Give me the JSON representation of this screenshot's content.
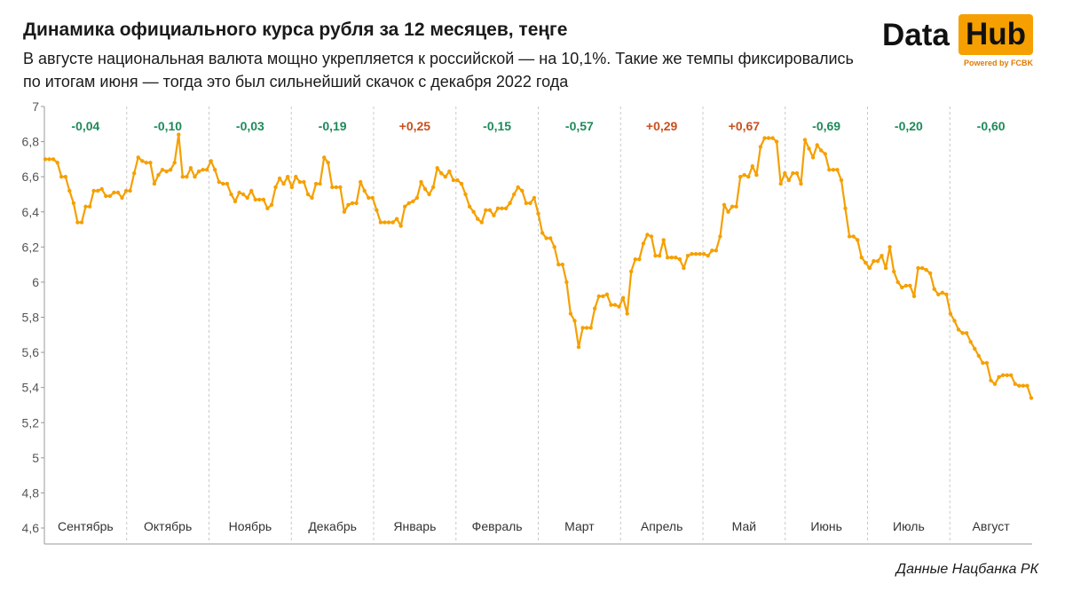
{
  "header": {
    "title": "Динамика официального курса рубля за 12 месяцев, теңге",
    "subtitle": "В августе национальная валюта мощно укрепляется к российской — на 10,1%. Такие же темпы фиксировались по итогам июня — тогда это был сильнейший скачок с декабря 2022 года"
  },
  "logo": {
    "data_text": "Data",
    "hub_text": "Hub",
    "powered": "Powered by FCBK",
    "accent_color": "#f5a000"
  },
  "source": "Данные Нацбанка РК",
  "colors": {
    "line": "#f5a000",
    "positive": "#c8501e",
    "negative": "#1e8a5a"
  },
  "chart_data": {
    "type": "line",
    "y_ticks": [
      "4,6",
      "4,8",
      "5",
      "5,2",
      "5,4",
      "5,6",
      "5,8",
      "6",
      "6,2",
      "6,4",
      "6,6",
      "6,8",
      "7"
    ],
    "ylim": [
      4.6,
      7.0
    ],
    "grid": false,
    "months": [
      "Сентябрь",
      "Октябрь",
      "Ноябрь",
      "Декабрь",
      "Январь",
      "Февраль",
      "Март",
      "Апрель",
      "Май",
      "Июнь",
      "Июль",
      "Август"
    ],
    "month_changes": [
      "-0,04",
      "-0,10",
      "-0,03",
      "-0,19",
      "+0,25",
      "-0,15",
      "-0,57",
      "+0,29",
      "+0,67",
      "-0,69",
      "-0,20",
      "-0,60"
    ],
    "series": [
      {
        "values": [
          6.7,
          6.7,
          6.7,
          6.68,
          6.6,
          6.6,
          6.52,
          6.45,
          6.34,
          6.34,
          6.43,
          6.43,
          6.52,
          6.52,
          6.53,
          6.49,
          6.49,
          6.51,
          6.51,
          6.48,
          6.52,
          6.52,
          6.62,
          6.71,
          6.69,
          6.68,
          6.68,
          6.56,
          6.61,
          6.64,
          6.63,
          6.64,
          6.68,
          6.84,
          6.6,
          6.6,
          6.65,
          6.6,
          6.63,
          6.64,
          6.64,
          6.69,
          6.64,
          6.57,
          6.56,
          6.56,
          6.5,
          6.46,
          6.51,
          6.5,
          6.48,
          6.52,
          6.47,
          6.47,
          6.47,
          6.42,
          6.44,
          6.54,
          6.59,
          6.56,
          6.6,
          6.54,
          6.6,
          6.57,
          6.57,
          6.5,
          6.48,
          6.56,
          6.56,
          6.71,
          6.68,
          6.54,
          6.54,
          6.54,
          6.4,
          6.44,
          6.45,
          6.45,
          6.57,
          6.52,
          6.48,
          6.48,
          6.41,
          6.34,
          6.34,
          6.34,
          6.34,
          6.36,
          6.32,
          6.43,
          6.45,
          6.46,
          6.48,
          6.57,
          6.53,
          6.5,
          6.54,
          6.65,
          6.62,
          6.6,
          6.63,
          6.58,
          6.58,
          6.56,
          6.5,
          6.43,
          6.4,
          6.36,
          6.34,
          6.41,
          6.41,
          6.38,
          6.42,
          6.42,
          6.42,
          6.45,
          6.5,
          6.54,
          6.52,
          6.45,
          6.45,
          6.48,
          6.39,
          6.28,
          6.25,
          6.25,
          6.2,
          6.1,
          6.1,
          6.0,
          5.82,
          5.78,
          5.63,
          5.74,
          5.74,
          5.74,
          5.85,
          5.92,
          5.92,
          5.93,
          5.87,
          5.87,
          5.86,
          5.91,
          5.82,
          6.06,
          6.13,
          6.13,
          6.22,
          6.27,
          6.26,
          6.15,
          6.15,
          6.24,
          6.14,
          6.14,
          6.14,
          6.13,
          6.08,
          6.15,
          6.16,
          6.16,
          6.16,
          6.16,
          6.15,
          6.18,
          6.18,
          6.26,
          6.44,
          6.4,
          6.43,
          6.43,
          6.6,
          6.61,
          6.6,
          6.66,
          6.61,
          6.77,
          6.82,
          6.82,
          6.82,
          6.8,
          6.56,
          6.62,
          6.58,
          6.62,
          6.62,
          6.56,
          6.81,
          6.76,
          6.71,
          6.78,
          6.75,
          6.73,
          6.64,
          6.64,
          6.64,
          6.58,
          6.42,
          6.26,
          6.26,
          6.24,
          6.14,
          6.11,
          6.08,
          6.12,
          6.12,
          6.15,
          6.08,
          6.2,
          6.06,
          6.0,
          5.97,
          5.98,
          5.98,
          5.92,
          6.08,
          6.08,
          6.07,
          6.05,
          5.96,
          5.93,
          5.94,
          5.93,
          5.82,
          5.78,
          5.73,
          5.71,
          5.71,
          5.66,
          5.62,
          5.58,
          5.54,
          5.54,
          5.44,
          5.42,
          5.46,
          5.47,
          5.47,
          5.47,
          5.42,
          5.41,
          5.41,
          5.41,
          5.34
        ]
      }
    ]
  }
}
